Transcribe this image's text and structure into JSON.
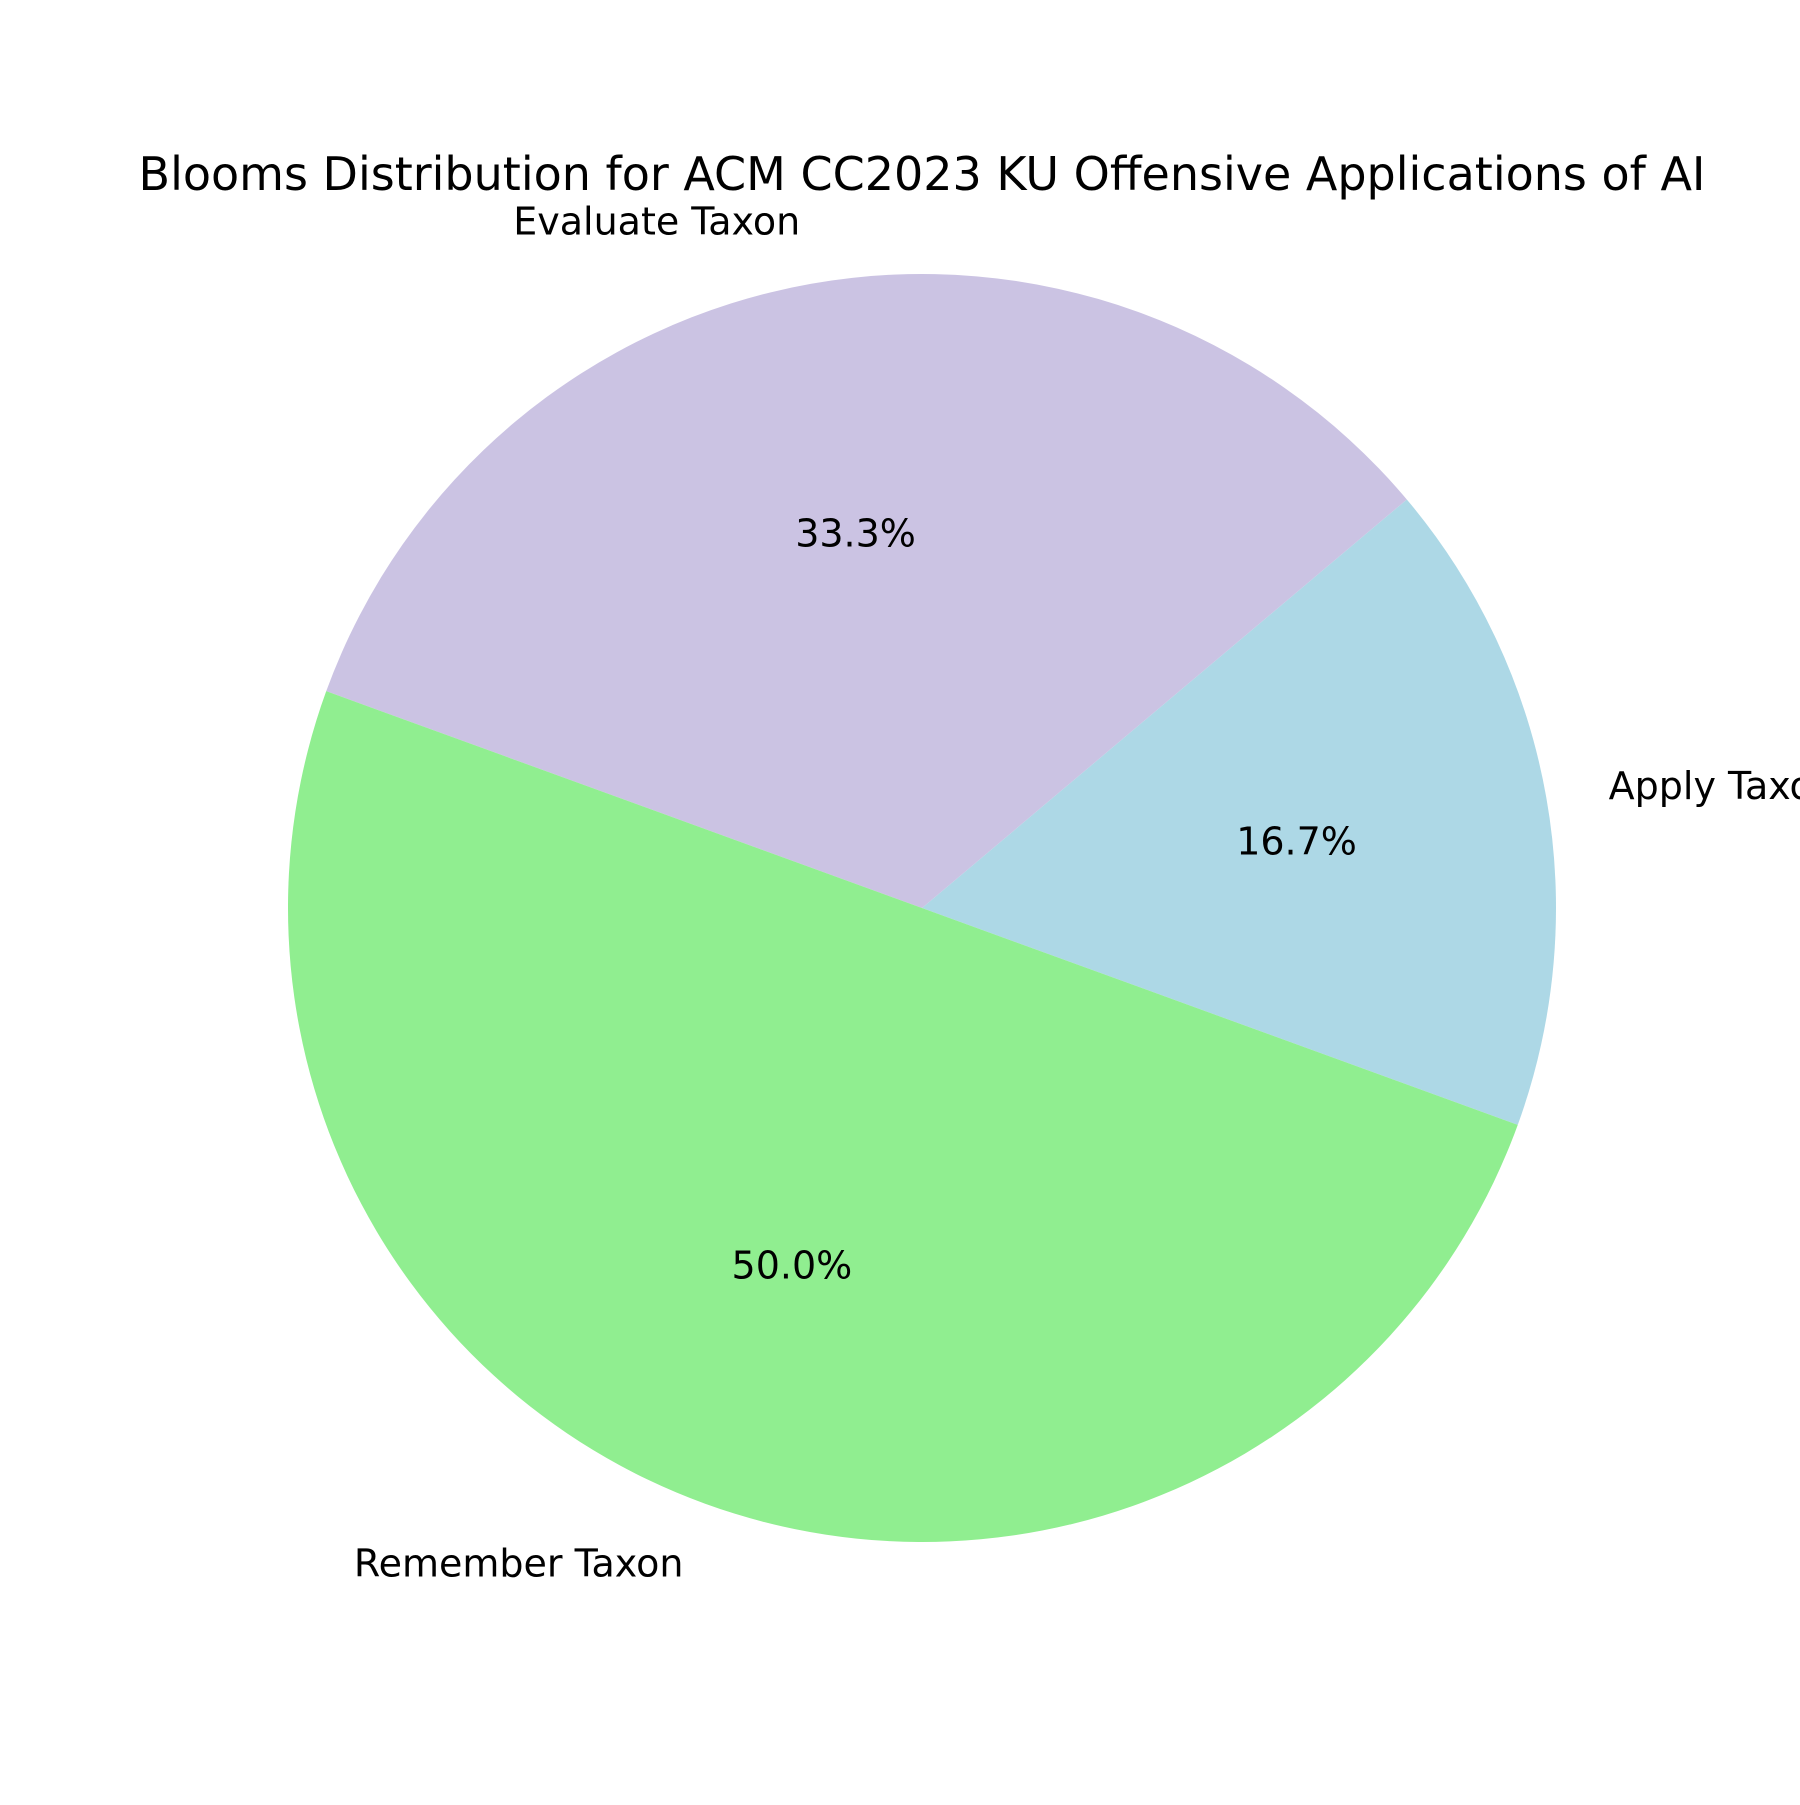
{
  "chart_data": {
    "type": "pie",
    "title": "Blooms Distribution for ACM CC2023 KU Offensive Applications of AI",
    "categories": [
      "Apply Taxon",
      "Evaluate Taxon",
      "Remember Taxon"
    ],
    "values": [
      16.7,
      33.3,
      50.0
    ],
    "percent_labels": [
      "16.7%",
      "33.3%",
      "50.0%"
    ],
    "colors": [
      "#add8e6",
      "#cbc3e3",
      "#90ee90"
    ],
    "start_angle_deg": -20,
    "direction": "counterclockwise",
    "legend": "none"
  }
}
